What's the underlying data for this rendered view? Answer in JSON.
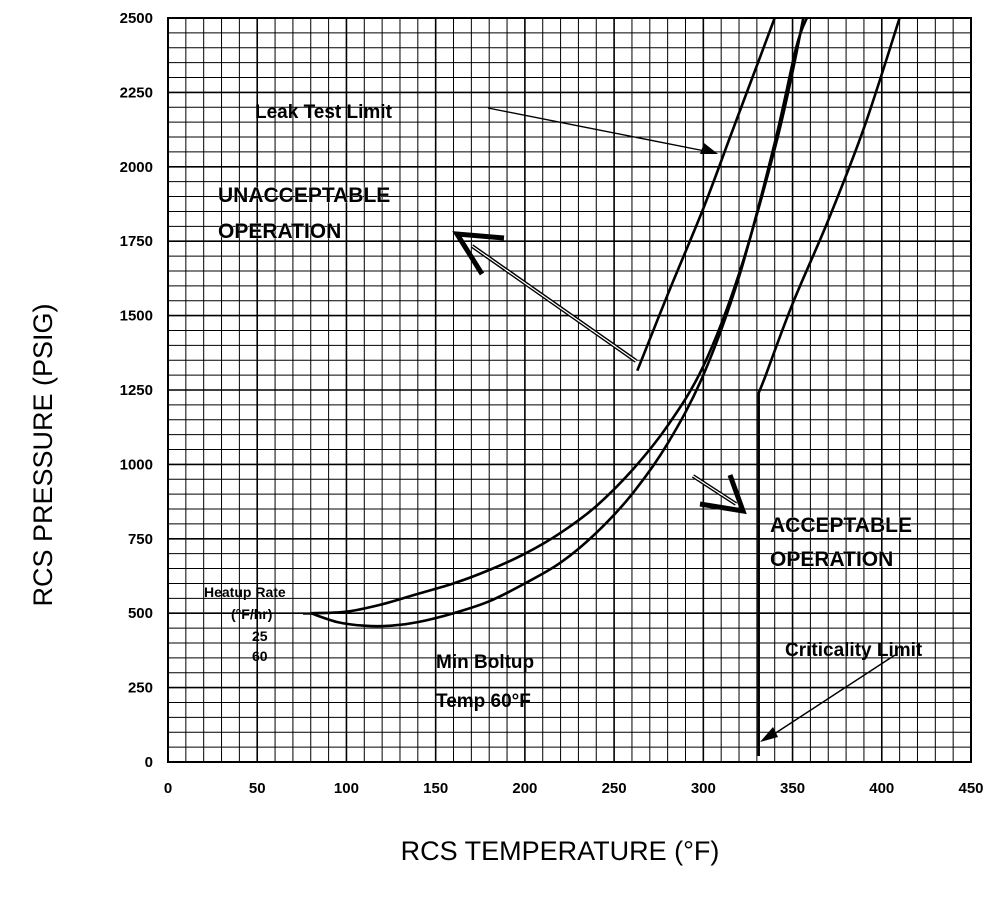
{
  "chart_data": {
    "type": "line",
    "xlabel": "RCS TEMPERATURE (°F)",
    "ylabel": "RCS PRESSURE (PSIG)",
    "xlim": [
      0,
      450
    ],
    "ylim": [
      0,
      2500
    ],
    "x_ticks": [
      0,
      50,
      100,
      150,
      200,
      250,
      300,
      350,
      400,
      450
    ],
    "y_ticks": [
      0,
      250,
      500,
      750,
      1000,
      1250,
      1500,
      1750,
      2000,
      2250,
      2500
    ],
    "grid": true,
    "grid_minor_x": 10,
    "grid_minor_y": 50,
    "series": [
      {
        "name": "25",
        "points": [
          [
            80,
            500
          ],
          [
            100,
            505
          ],
          [
            120,
            530
          ],
          [
            140,
            565
          ],
          [
            160,
            600
          ],
          [
            180,
            645
          ],
          [
            200,
            700
          ],
          [
            220,
            770
          ],
          [
            240,
            860
          ],
          [
            260,
            980
          ],
          [
            280,
            1130
          ],
          [
            300,
            1330
          ],
          [
            320,
            1640
          ],
          [
            340,
            2060
          ],
          [
            350,
            2320
          ],
          [
            356,
            2500
          ]
        ]
      },
      {
        "name": "60",
        "points": [
          [
            80,
            500
          ],
          [
            95,
            470
          ],
          [
            110,
            458
          ],
          [
            125,
            458
          ],
          [
            140,
            470
          ],
          [
            160,
            500
          ],
          [
            180,
            540
          ],
          [
            200,
            600
          ],
          [
            220,
            670
          ],
          [
            240,
            770
          ],
          [
            260,
            900
          ],
          [
            280,
            1070
          ],
          [
            300,
            1300
          ],
          [
            320,
            1630
          ],
          [
            340,
            2080
          ],
          [
            352,
            2400
          ],
          [
            358,
            2500
          ]
        ]
      },
      {
        "name": "Leak Test Limit",
        "points": [
          [
            263,
            1315
          ],
          [
            280,
            1570
          ],
          [
            300,
            1860
          ],
          [
            315,
            2100
          ],
          [
            330,
            2340
          ],
          [
            340,
            2500
          ]
        ]
      },
      {
        "name": "Criticality Limit",
        "points": [
          [
            331,
            20
          ],
          [
            331,
            1240
          ],
          [
            335,
            1300
          ],
          [
            350,
            1540
          ],
          [
            370,
            1820
          ],
          [
            390,
            2130
          ],
          [
            410,
            2500
          ]
        ]
      }
    ],
    "annotations": {
      "leak_test_limit": "Leak Test Limit",
      "unacceptable_line1": "UNACCEPTABLE",
      "unacceptable_line2": "OPERATION",
      "acceptable_line1": "ACCEPTABLE",
      "acceptable_line2": "OPERATION",
      "criticality_limit": "Criticality Limit",
      "heatup_line1": "Heatup Rate",
      "heatup_line2": "(°F/hr)",
      "heatup_25": "25",
      "heatup_60": "60",
      "boltup_line1": "Min Boltup",
      "boltup_line2": "Temp 60°F"
    }
  }
}
